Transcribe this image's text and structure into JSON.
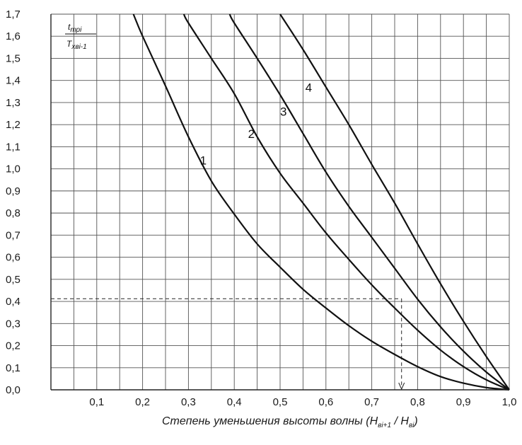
{
  "chart_data": {
    "type": "line",
    "xlabel": {
      "text": "Степень уменьшения высоты волны (",
      "num": "H",
      "num_sub": "вi+1",
      "sep": " / ",
      "den": "H",
      "den_sub": "вi",
      "close": ")"
    },
    "ylabel": {
      "num": "t",
      "num_sub": "трi",
      "den": "T",
      "den_sub": "хвi-1"
    },
    "xlim": [
      0.0,
      1.0
    ],
    "ylim": [
      0.0,
      1.7
    ],
    "x_ticks": [
      "0,1",
      "0,2",
      "0,3",
      "0,4",
      "0,5",
      "0,6",
      "0,7",
      "0,8",
      "0,9",
      "1,0"
    ],
    "x_tick_values": [
      0.1,
      0.2,
      0.3,
      0.4,
      0.5,
      0.6,
      0.7,
      0.8,
      0.9,
      1.0
    ],
    "y_ticks": [
      "0,0",
      "0,1",
      "0,2",
      "0,3",
      "0,4",
      "0,5",
      "0,6",
      "0,7",
      "0,8",
      "0,9",
      "1,0",
      "1,1",
      "1,2",
      "1,3",
      "1,4",
      "1,5",
      "1,6",
      "1,7"
    ],
    "y_tick_values": [
      0.0,
      0.1,
      0.2,
      0.3,
      0.4,
      0.5,
      0.6,
      0.7,
      0.8,
      0.9,
      1.0,
      1.1,
      1.2,
      1.3,
      1.4,
      1.5,
      1.6,
      1.7
    ],
    "grid": true,
    "x_minor_step": 0.05,
    "y_minor_step": 0.1,
    "series": [
      {
        "name": "1",
        "label_at": [
          0.325,
          1.02
        ],
        "x": [
          0.18,
          0.2,
          0.25,
          0.3,
          0.35,
          0.4,
          0.45,
          0.5,
          0.55,
          0.6,
          0.65,
          0.7,
          0.75,
          0.8,
          0.85,
          0.9,
          0.95,
          1.0
        ],
        "y": [
          1.7,
          1.6,
          1.375,
          1.145,
          0.945,
          0.795,
          0.66,
          0.555,
          0.455,
          0.37,
          0.29,
          0.22,
          0.16,
          0.105,
          0.06,
          0.03,
          0.01,
          0.0
        ]
      },
      {
        "name": "2",
        "label_at": [
          0.43,
          1.14
        ],
        "x": [
          0.29,
          0.3,
          0.35,
          0.4,
          0.45,
          0.5,
          0.55,
          0.6,
          0.65,
          0.7,
          0.75,
          0.8,
          0.85,
          0.9,
          0.95,
          1.0
        ],
        "y": [
          1.7,
          1.66,
          1.5,
          1.34,
          1.145,
          0.98,
          0.845,
          0.71,
          0.59,
          0.475,
          0.37,
          0.27,
          0.18,
          0.105,
          0.045,
          0.0
        ]
      },
      {
        "name": "3",
        "label_at": [
          0.5,
          1.24
        ],
        "x": [
          0.39,
          0.4,
          0.45,
          0.5,
          0.55,
          0.6,
          0.65,
          0.7,
          0.75,
          0.8,
          0.85,
          0.9,
          0.95,
          1.0
        ],
        "y": [
          1.7,
          1.66,
          1.5,
          1.335,
          1.16,
          0.985,
          0.83,
          0.69,
          0.55,
          0.41,
          0.285,
          0.175,
          0.08,
          0.0
        ]
      },
      {
        "name": "4",
        "label_at": [
          0.555,
          1.35
        ],
        "x": [
          0.5,
          0.55,
          0.6,
          0.65,
          0.7,
          0.75,
          0.8,
          0.85,
          0.9,
          0.95,
          1.0
        ],
        "y": [
          1.7,
          1.54,
          1.37,
          1.2,
          1.02,
          0.845,
          0.66,
          0.48,
          0.31,
          0.15,
          0.0
        ]
      }
    ],
    "annotation": {
      "style": "dashed",
      "x": 0.765,
      "y": 0.4
    }
  }
}
